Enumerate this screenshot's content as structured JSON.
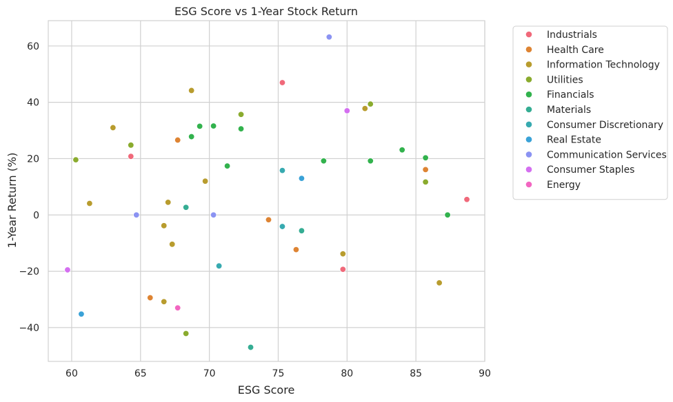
{
  "chart_data": {
    "type": "scatter",
    "title": "ESG Score vs 1-Year Stock Return",
    "xlabel": "ESG Score",
    "ylabel": "1-Year Return (%)",
    "xlim": [
      58.3,
      90.0
    ],
    "ylim": [
      -52.0,
      69.0
    ],
    "x_ticks": [
      60,
      65,
      70,
      75,
      80,
      85,
      90
    ],
    "y_ticks": [
      -40,
      -20,
      0,
      20,
      40,
      60
    ],
    "y_tick_labels": [
      "−40",
      "−20",
      "0",
      "20",
      "40",
      "60"
    ],
    "grid": true,
    "legend_position": "outside-right",
    "series": [
      {
        "name": "Industrials",
        "color": "#f0697a",
        "points": [
          [
            75.3,
            47.0
          ],
          [
            64.3,
            20.8
          ],
          [
            88.7,
            5.5
          ],
          [
            79.7,
            -19.3
          ]
        ]
      },
      {
        "name": "Health Care",
        "color": "#de8433",
        "points": [
          [
            67.7,
            26.6
          ],
          [
            74.3,
            -1.7
          ],
          [
            76.3,
            -12.3
          ],
          [
            65.7,
            -29.4
          ],
          [
            85.7,
            16.1
          ]
        ]
      },
      {
        "name": "Information Technology",
        "color": "#b89c2e",
        "points": [
          [
            68.7,
            44.2
          ],
          [
            63.0,
            31.0
          ],
          [
            69.7,
            12.0
          ],
          [
            61.3,
            4.1
          ],
          [
            67.0,
            4.5
          ],
          [
            66.7,
            -3.8
          ],
          [
            67.3,
            -10.4
          ],
          [
            79.7,
            -13.8
          ],
          [
            66.7,
            -30.8
          ],
          [
            81.3,
            37.8
          ],
          [
            86.7,
            -24.1
          ]
        ]
      },
      {
        "name": "Utilities",
        "color": "#8aab2e",
        "points": [
          [
            72.3,
            35.7
          ],
          [
            64.3,
            24.8
          ],
          [
            60.3,
            19.6
          ],
          [
            68.3,
            -42.1
          ],
          [
            81.7,
            39.4
          ],
          [
            85.7,
            11.7
          ]
        ]
      },
      {
        "name": "Financials",
        "color": "#32b24d",
        "points": [
          [
            69.3,
            31.5
          ],
          [
            70.3,
            31.6
          ],
          [
            72.3,
            30.6
          ],
          [
            68.7,
            27.8
          ],
          [
            71.3,
            17.4
          ],
          [
            78.3,
            19.2
          ],
          [
            81.7,
            19.2
          ],
          [
            84.0,
            23.1
          ],
          [
            85.7,
            20.3
          ],
          [
            87.3,
            0.0
          ]
        ]
      },
      {
        "name": "Materials",
        "color": "#35ad93",
        "points": [
          [
            68.3,
            2.7
          ],
          [
            76.7,
            -5.6
          ],
          [
            73.0,
            -47.0
          ]
        ]
      },
      {
        "name": "Consumer Discretionary",
        "color": "#37aab0",
        "points": [
          [
            70.7,
            -18.1
          ],
          [
            75.3,
            15.8
          ],
          [
            75.3,
            -4.1
          ]
        ]
      },
      {
        "name": "Real Estate",
        "color": "#3aa2d7",
        "points": [
          [
            76.7,
            13.0
          ],
          [
            60.7,
            -35.2
          ]
        ]
      },
      {
        "name": "Communication Services",
        "color": "#8b93f2",
        "points": [
          [
            78.7,
            63.2
          ],
          [
            64.7,
            0.0
          ],
          [
            70.3,
            0.0
          ]
        ]
      },
      {
        "name": "Consumer Staples",
        "color": "#d46ff0",
        "points": [
          [
            80.0,
            37.0
          ],
          [
            59.7,
            -19.5
          ]
        ]
      },
      {
        "name": "Energy",
        "color": "#f266c1",
        "points": [
          [
            67.7,
            -33.0
          ]
        ]
      }
    ]
  }
}
